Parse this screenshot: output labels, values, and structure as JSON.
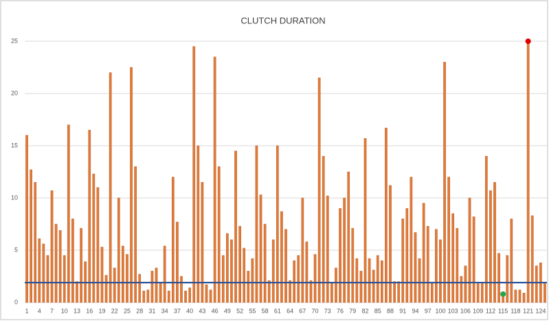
{
  "chart_data": {
    "type": "bar",
    "title": "CLUTCH DURATION",
    "categories": [
      "1",
      null,
      null,
      "4",
      null,
      null,
      "7",
      null,
      null,
      "10",
      null,
      null,
      "13",
      null,
      null,
      "16",
      null,
      null,
      "19",
      null,
      null,
      "22",
      null,
      null,
      "25",
      null,
      null,
      "28",
      null,
      null,
      "31",
      null,
      null,
      "34",
      null,
      null,
      "37",
      null,
      null,
      "40",
      null,
      null,
      "43",
      null,
      null,
      "46",
      null,
      null,
      "49",
      null,
      null,
      "52",
      null,
      null,
      "55",
      null,
      null,
      "58",
      null,
      null,
      "61",
      null,
      null,
      "64",
      null,
      null,
      "67",
      null,
      null,
      "70",
      null,
      null,
      "73",
      null,
      null,
      "76",
      null,
      null,
      "79",
      null,
      null,
      "82",
      null,
      null,
      "85",
      null,
      null,
      "88",
      null,
      null,
      "91",
      null,
      null,
      "94",
      null,
      null,
      "97",
      null,
      null,
      "100",
      null,
      null,
      "103",
      null,
      null,
      "106",
      null,
      null,
      "109",
      null,
      null,
      "112",
      null,
      null,
      "115",
      null,
      null,
      "118",
      null,
      null,
      "121",
      null,
      null,
      "124",
      null
    ],
    "values": [
      16,
      12.7,
      11.5,
      6.1,
      5.6,
      4.5,
      10.7,
      7.5,
      6.9,
      4.5,
      17,
      8,
      2,
      7.1,
      3.9,
      16.5,
      12.3,
      11,
      5.3,
      2.6,
      22,
      3.3,
      10,
      5.4,
      4.6,
      22.5,
      13,
      2.7,
      1.1,
      1.2,
      3,
      3.3,
      1.9,
      5.4,
      1.1,
      12,
      7.7,
      2.5,
      1.1,
      1.4,
      24.5,
      15,
      11.5,
      1.7,
      1.2,
      23.5,
      13,
      4.5,
      6.6,
      6,
      14.5,
      7.3,
      5.2,
      3,
      4.2,
      15,
      10.3,
      7.5,
      2.1,
      6,
      15,
      8.7,
      7,
      2.1,
      4,
      4.5,
      10,
      5.8,
      2.1,
      4.6,
      21.5,
      14,
      10.2,
      1.9,
      3.3,
      9,
      10,
      12.5,
      7.1,
      4.2,
      3,
      15.7,
      4.2,
      3.1,
      4.5,
      4,
      16.7,
      11.2,
      2,
      2,
      8,
      9,
      12,
      6.7,
      4.2,
      9.5,
      7.3,
      1.9,
      7,
      6,
      23,
      12,
      8.5,
      7.1,
      2.5,
      3.5,
      10,
      8.2,
      1.8,
      1.8,
      14,
      10.7,
      11.5,
      4.7,
      0.8,
      4.5,
      8,
      1.2,
      1.2,
      0.9,
      25,
      8.3,
      3.5,
      3.8,
      1.8
    ],
    "color": "#e07b39",
    "ylim": [
      0,
      25
    ],
    "yticks": [
      0,
      5,
      10,
      15,
      20,
      25
    ],
    "grid": true,
    "reference_line": 1.9,
    "reference_line_color": "#2f5597",
    "max_marker_color": "#e00000",
    "min_marker_color": "#22a64a"
  }
}
